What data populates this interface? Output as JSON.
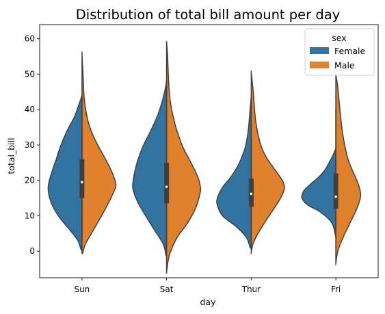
{
  "chart_data": {
    "type": "violin",
    "title": "Distribution of total bill amount per day",
    "xlabel": "day",
    "ylabel": "total_bill",
    "categories": [
      "Sun",
      "Sat",
      "Thur",
      "Fri"
    ],
    "ylim": [
      -7.5,
      64
    ],
    "yticks": [
      0,
      10,
      20,
      30,
      40,
      50,
      60
    ],
    "split": true,
    "legend": {
      "title": "sex",
      "placement": "top-right",
      "entries": [
        "Female",
        "Male"
      ]
    },
    "series": [
      {
        "name": "Female",
        "color": "#3274a1",
        "side": "left",
        "violins": [
          {
            "range": [
              0.5,
              44
            ],
            "profile": [
              [
                0.5,
                0.03
              ],
              [
                3,
                0.12
              ],
              [
                6,
                0.36
              ],
              [
                10,
                0.7
              ],
              [
                14,
                0.92
              ],
              [
                18,
                1.0
              ],
              [
                22,
                0.9
              ],
              [
                26,
                0.76
              ],
              [
                30,
                0.62
              ],
              [
                34,
                0.44
              ],
              [
                38,
                0.22
              ],
              [
                42,
                0.07
              ],
              [
                44,
                0.0
              ]
            ]
          },
          {
            "range": [
              -1,
              48
            ],
            "profile": [
              [
                -1,
                0.02
              ],
              [
                2,
                0.1
              ],
              [
                6,
                0.36
              ],
              [
                10,
                0.62
              ],
              [
                14,
                0.86
              ],
              [
                18,
                1.0
              ],
              [
                22,
                0.95
              ],
              [
                26,
                0.84
              ],
              [
                30,
                0.68
              ],
              [
                34,
                0.47
              ],
              [
                38,
                0.28
              ],
              [
                42,
                0.14
              ],
              [
                45,
                0.06
              ],
              [
                48,
                0.0
              ]
            ]
          },
          {
            "range": [
              1,
              44
            ],
            "profile": [
              [
                1,
                0.03
              ],
              [
                4,
                0.15
              ],
              [
                7,
                0.45
              ],
              [
                10,
                0.85
              ],
              [
                13,
                1.0
              ],
              [
                15,
                1.0
              ],
              [
                18,
                0.85
              ],
              [
                21,
                0.6
              ],
              [
                24,
                0.4
              ],
              [
                27,
                0.26
              ],
              [
                30,
                0.16
              ],
              [
                34,
                0.09
              ],
              [
                38,
                0.05
              ],
              [
                44,
                0.0
              ]
            ]
          },
          {
            "range": [
              4,
              29
            ],
            "profile": [
              [
                4,
                0.0
              ],
              [
                8,
                0.12
              ],
              [
                11,
                0.45
              ],
              [
                13,
                0.82
              ],
              [
                15,
                1.0
              ],
              [
                17,
                0.95
              ],
              [
                19,
                0.74
              ],
              [
                21,
                0.5
              ],
              [
                23,
                0.32
              ],
              [
                25,
                0.2
              ],
              [
                27,
                0.09
              ],
              [
                29,
                0.0
              ]
            ]
          }
        ]
      },
      {
        "name": "Male",
        "color": "#e1812c",
        "side": "right",
        "violins": [
          {
            "range": [
              -0.5,
              56
            ],
            "profile": [
              [
                -0.5,
                0.02
              ],
              [
                2,
                0.1
              ],
              [
                5,
                0.28
              ],
              [
                9,
                0.52
              ],
              [
                13,
                0.75
              ],
              [
                17,
                0.95
              ],
              [
                19,
                1.0
              ],
              [
                22,
                0.9
              ],
              [
                25,
                0.75
              ],
              [
                28,
                0.58
              ],
              [
                32,
                0.36
              ],
              [
                36,
                0.2
              ],
              [
                40,
                0.11
              ],
              [
                44,
                0.06
              ],
              [
                48,
                0.04
              ],
              [
                52,
                0.02
              ],
              [
                56,
                0.0
              ]
            ]
          },
          {
            "range": [
              -6,
              59
            ],
            "profile": [
              [
                -6,
                0.0
              ],
              [
                -3,
                0.04
              ],
              [
                0,
                0.12
              ],
              [
                4,
                0.32
              ],
              [
                8,
                0.62
              ],
              [
                12,
                0.85
              ],
              [
                16,
                0.98
              ],
              [
                18,
                1.0
              ],
              [
                21,
                0.92
              ],
              [
                25,
                0.72
              ],
              [
                29,
                0.5
              ],
              [
                33,
                0.34
              ],
              [
                37,
                0.22
              ],
              [
                41,
                0.13
              ],
              [
                45,
                0.08
              ],
              [
                50,
                0.05
              ],
              [
                55,
                0.03
              ],
              [
                59,
                0.0
              ]
            ]
          },
          {
            "range": [
              -0.5,
              50.5
            ],
            "profile": [
              [
                -0.5,
                0.0
              ],
              [
                2,
                0.05
              ],
              [
                5,
                0.2
              ],
              [
                9,
                0.46
              ],
              [
                13,
                0.74
              ],
              [
                16,
                0.92
              ],
              [
                18,
                0.98
              ],
              [
                20,
                0.92
              ],
              [
                23,
                0.7
              ],
              [
                26,
                0.48
              ],
              [
                29,
                0.32
              ],
              [
                33,
                0.2
              ],
              [
                37,
                0.13
              ],
              [
                41,
                0.09
              ],
              [
                45,
                0.06
              ],
              [
                50.5,
                0.0
              ]
            ]
          },
          {
            "range": [
              -3.5,
              50
            ],
            "profile": [
              [
                -3.5,
                0.0
              ],
              [
                0,
                0.06
              ],
              [
                4,
                0.22
              ],
              [
                8,
                0.42
              ],
              [
                12,
                0.62
              ],
              [
                15,
                0.72
              ],
              [
                17,
                0.72
              ],
              [
                20,
                0.62
              ],
              [
                23,
                0.48
              ],
              [
                26,
                0.36
              ],
              [
                30,
                0.26
              ],
              [
                34,
                0.19
              ],
              [
                38,
                0.14
              ],
              [
                42,
                0.1
              ],
              [
                46,
                0.06
              ],
              [
                50,
                0.0
              ]
            ]
          }
        ]
      }
    ],
    "boxes": [
      {
        "category": "Sun",
        "q1": 15,
        "median": 19.5,
        "q3": 26,
        "whisker_low": 3,
        "whisker_high": 44
      },
      {
        "category": "Sat",
        "q1": 13.5,
        "median": 18.2,
        "q3": 25,
        "whisker_low": 3,
        "whisker_high": 48
      },
      {
        "category": "Thur",
        "q1": 12.5,
        "median": 16.2,
        "q3": 20.5,
        "whisker_low": 7,
        "whisker_high": 32
      },
      {
        "category": "Fri",
        "q1": 12,
        "median": 15.4,
        "q3": 22,
        "whisker_low": 5.5,
        "whisker_high": 40
      }
    ]
  }
}
